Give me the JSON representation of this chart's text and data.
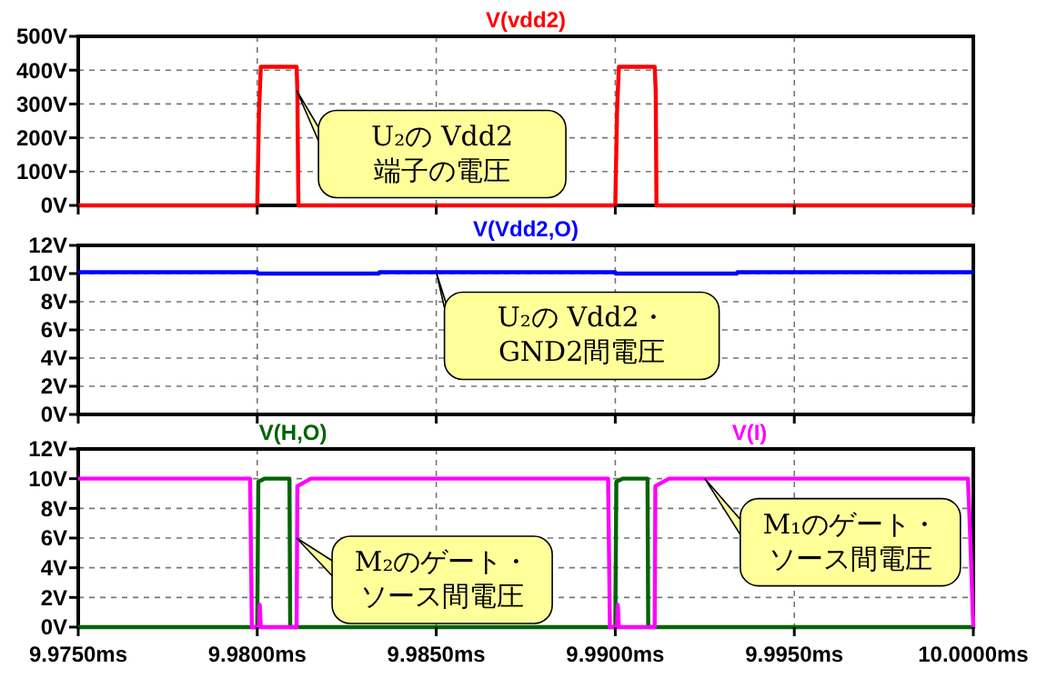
{
  "chart_data": [
    {
      "type": "line",
      "legend": "top",
      "grid": true,
      "tick_labels": "y",
      "xlim": [
        9.975,
        10.0
      ],
      "xticks": [
        {
          "value": 9.975,
          "label": null
        },
        {
          "value": 9.98,
          "label": null
        },
        {
          "value": 9.985,
          "label": null
        },
        {
          "value": 9.99,
          "label": null
        },
        {
          "value": 9.995,
          "label": null
        },
        {
          "value": 10.0,
          "label": null
        }
      ],
      "ylim": [
        0,
        500
      ],
      "yticks": [
        {
          "value": 0,
          "label": "0V"
        },
        {
          "value": 100,
          "label": "100V"
        },
        {
          "value": 200,
          "label": "200V"
        },
        {
          "value": 300,
          "label": "300V"
        },
        {
          "value": 400,
          "label": "400V"
        },
        {
          "value": 500,
          "label": "500V"
        }
      ],
      "series": [
        {
          "name": "V(vdd2)",
          "color": "#ff0000",
          "x": [
            9.975,
            9.98,
            9.98005,
            9.9801,
            9.9811,
            9.98112,
            9.98115,
            9.99,
            9.99005,
            9.9901,
            9.9911,
            9.99113,
            9.99115,
            10.0
          ],
          "values": [
            0,
            0,
            280,
            410,
            410,
            340,
            0,
            0,
            280,
            410,
            410,
            340,
            0,
            0
          ]
        }
      ],
      "annotations": [
        {
          "text": "U₂の Vdd2\n端子の電圧",
          "x": 9.9811,
          "y": 340
        }
      ]
    },
    {
      "type": "line",
      "legend": "top",
      "grid": true,
      "tick_labels": "y",
      "xlim": [
        9.975,
        10.0
      ],
      "xticks": [
        {
          "value": 9.975,
          "label": null
        },
        {
          "value": 9.98,
          "label": null
        },
        {
          "value": 9.985,
          "label": null
        },
        {
          "value": 9.99,
          "label": null
        },
        {
          "value": 9.995,
          "label": null
        },
        {
          "value": 10.0,
          "label": null
        }
      ],
      "ylim": [
        0,
        12
      ],
      "yticks": [
        {
          "value": 0,
          "label": "0V"
        },
        {
          "value": 2,
          "label": "2V"
        },
        {
          "value": 4,
          "label": "4V"
        },
        {
          "value": 6,
          "label": "6V"
        },
        {
          "value": 8,
          "label": "8V"
        },
        {
          "value": 10,
          "label": "10V"
        },
        {
          "value": 12,
          "label": "12V"
        }
      ],
      "series": [
        {
          "name": "V(Vdd2,O)",
          "color": "#0000ff",
          "x": [
            9.975,
            9.98,
            9.98001,
            9.9834,
            9.98341,
            9.99,
            9.99001,
            9.9934,
            9.99341,
            10.0
          ],
          "values": [
            10.1,
            10.1,
            10,
            10,
            10.1,
            10.1,
            10,
            10,
            10.1,
            10.1
          ]
        }
      ],
      "annotations": [
        {
          "text": "U₂の Vdd2・\nGND2間電圧",
          "x": 9.985,
          "y": 10.1
        }
      ]
    },
    {
      "type": "line",
      "legend": "top",
      "grid": true,
      "xlim": [
        9.975,
        10.0
      ],
      "xticks": [
        {
          "value": 9.975,
          "label": "9.9750ms"
        },
        {
          "value": 9.98,
          "label": "9.9800ms"
        },
        {
          "value": 9.985,
          "label": "9.9850ms"
        },
        {
          "value": 9.99,
          "label": "9.9900ms"
        },
        {
          "value": 9.995,
          "label": "9.9950ms"
        },
        {
          "value": 10.0,
          "label": "10.0000ms"
        }
      ],
      "ylim": [
        0,
        12
      ],
      "yticks": [
        {
          "value": 0,
          "label": "0V"
        },
        {
          "value": 2,
          "label": "2V"
        },
        {
          "value": 4,
          "label": "4V"
        },
        {
          "value": 6,
          "label": "6V"
        },
        {
          "value": 8,
          "label": "8V"
        },
        {
          "value": 10,
          "label": "10V"
        },
        {
          "value": 12,
          "label": "12V"
        }
      ],
      "series": [
        {
          "name": "V(H,O)",
          "color": "#006400",
          "x": [
            9.975,
            9.98,
            9.98003,
            9.9802,
            9.9809,
            9.98092,
            9.99,
            9.99003,
            9.9902,
            9.9909,
            9.99092,
            10.0
          ],
          "values": [
            0,
            0,
            9.8,
            10,
            10,
            0,
            0,
            9.8,
            10,
            10,
            0,
            0
          ]
        },
        {
          "name": "V(I)",
          "color": "#ff00ff",
          "x": [
            9.975,
            9.9798,
            9.97985,
            9.98005,
            9.98007,
            9.9801,
            9.9811,
            9.98112,
            9.9815,
            9.9898,
            9.98985,
            9.99005,
            9.99007,
            9.9901,
            9.9911,
            9.99112,
            9.9915,
            9.99985,
            9.9999,
            10.0
          ],
          "values": [
            10,
            10,
            0,
            0,
            1.5,
            0,
            0,
            9.5,
            10,
            10,
            0,
            0,
            1.5,
            0,
            0,
            9.5,
            10,
            10,
            7,
            0
          ]
        }
      ],
      "annotations": [
        {
          "text": "M₂のゲート・ソース間電圧",
          "x": 9.9811,
          "y": 6
        },
        {
          "text": "M₁のゲート・ソース間電圧",
          "x": 9.9925,
          "y": 10
        }
      ]
    }
  ]
}
